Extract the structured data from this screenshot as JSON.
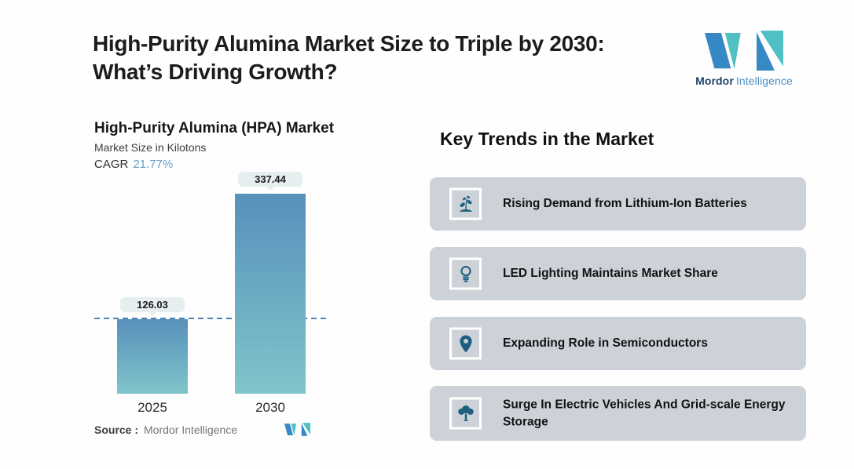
{
  "header": {
    "title_line1": "High-Purity Alumina Market Size to Triple by 2030:",
    "title_line2": "What’s Driving Growth?"
  },
  "brand": {
    "name_bold": "Mordor",
    "name_light": "Intelligence"
  },
  "chart": {
    "title": "High-Purity Alumina (HPA) Market",
    "subtitle": "Market Size in Kilotons",
    "cagr_label": "CAGR",
    "cagr_value": "21.77%",
    "source_label": "Source :",
    "source_value": "Mordor Intelligence"
  },
  "chart_data": {
    "type": "bar",
    "categories": [
      "2025",
      "2030"
    ],
    "values": [
      126.03,
      337.44
    ],
    "value_labels": [
      "126.03",
      "337.44"
    ],
    "title": "High-Purity Alumina (HPA) Market",
    "ylabel": "Market Size in Kilotons",
    "cagr_percent": 21.77,
    "baseline": {
      "value": 126.03,
      "style": "dashed"
    },
    "grid": false,
    "legend": false
  },
  "trends": {
    "heading": "Key Trends in the Market",
    "items": [
      {
        "icon": "seedling-icon",
        "label": "Rising Demand from Lithium-Ion Batteries"
      },
      {
        "icon": "lightbulb-icon",
        "label": "LED Lighting Maintains Market Share"
      },
      {
        "icon": "location-pin-icon",
        "label": "Expanding Role in Semiconductors"
      },
      {
        "icon": "tree-icon",
        "label": "Surge In Electric Vehicles And Grid-scale Energy Storage"
      }
    ]
  },
  "colors": {
    "bar_gradient_top": "#5890bb",
    "bar_gradient_bottom": "#80c5cb",
    "dashed_line": "#4d82b6",
    "badge_bg": "#e7eef0",
    "card_bg": "#cdd2d9",
    "icon_fill": "#1e5f80",
    "cagr_value": "#64a0c8",
    "logo_blue": "#3789c5",
    "logo_teal": "#4fc0c4"
  }
}
